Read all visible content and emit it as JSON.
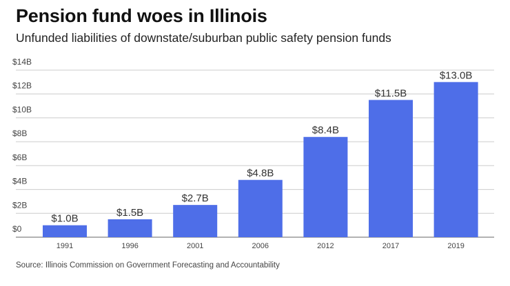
{
  "chart_data": {
    "type": "bar",
    "title": "Pension fund woes in Illinois",
    "subtitle": "Unfunded liabilities of downstate/suburban public safety pension funds",
    "source": "Source: Illinois Commission on Government Forecasting and Accountability",
    "xlabel": "",
    "ylabel": "",
    "categories": [
      "1991",
      "1996",
      "2001",
      "2006",
      "2012",
      "2017",
      "2019"
    ],
    "values": [
      1.0,
      1.5,
      2.7,
      4.8,
      8.4,
      11.5,
      13.0
    ],
    "data_labels": [
      "$1.0B",
      "$1.5B",
      "$2.7B",
      "$4.8B",
      "$8.4B",
      "$11.5B",
      "$13.0B"
    ],
    "unit": "billions USD",
    "ylim": [
      0,
      14
    ],
    "yticks": [
      0,
      2,
      4,
      6,
      8,
      10,
      12,
      14
    ],
    "ytick_labels": [
      "$0",
      "$2B",
      "$4B",
      "$6B",
      "$8B",
      "$10B",
      "$12B",
      "$14B"
    ],
    "grid": true,
    "legend": "none",
    "bar_color": "#4e6ee8",
    "grid_color": "#cccccc"
  }
}
